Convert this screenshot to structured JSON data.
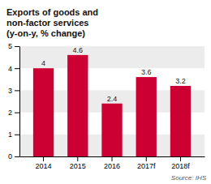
{
  "chart_data": {
    "type": "bar",
    "title": "Exports of goods and\nnon-factor services\n(y-on-y, % change)",
    "categories": [
      "2014",
      "2015",
      "2016",
      "2017f",
      "2018f"
    ],
    "values": [
      4.0,
      4.6,
      2.4,
      3.6,
      3.2
    ],
    "color": "#cc0033",
    "ylim": [
      0,
      5
    ],
    "yticks": [
      0,
      1,
      2,
      3,
      4,
      5
    ],
    "grid": true,
    "data_labels": true,
    "annotations": [
      "Source: IHS"
    ]
  }
}
